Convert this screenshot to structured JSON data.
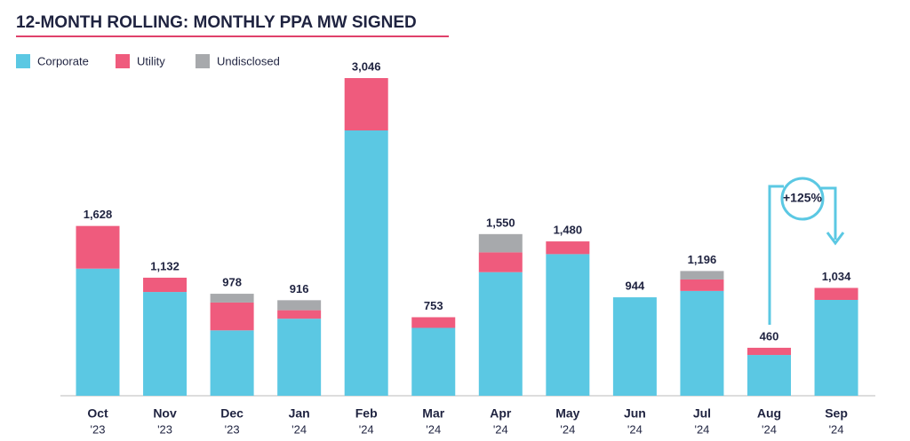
{
  "chart_data": {
    "type": "stacked_bar",
    "title": "12-MONTH ROLLING: MONTHLY PPA MW SIGNED",
    "categories": [
      "Oct",
      "Nov",
      "Dec",
      "Jan",
      "Feb",
      "Mar",
      "Apr",
      "May",
      "Jun",
      "Jul",
      "Aug",
      "Sep"
    ],
    "category_years": [
      "'23",
      "'23",
      "'23",
      "'24",
      "'24",
      "'24",
      "'24",
      "'24",
      "'24",
      "'24",
      "'24",
      "'24"
    ],
    "series": [
      {
        "name": "Corporate",
        "color": "#5bc8e3",
        "values": [
          1219,
          995,
          627,
          739,
          2544,
          651,
          1185,
          1358,
          944,
          1005,
          391,
          919
        ]
      },
      {
        "name": "Utility",
        "color": "#ef5b7d",
        "values": [
          409,
          137,
          267,
          81,
          502,
          102,
          190,
          122,
          0,
          110,
          69,
          115
        ]
      },
      {
        "name": "Undisclosed",
        "color": "#a7a9ac",
        "values": [
          0,
          0,
          84,
          96,
          0,
          0,
          175,
          0,
          0,
          81,
          0,
          0
        ]
      }
    ],
    "totals": [
      1628,
      1132,
      978,
      916,
      3046,
      753,
      1550,
      1480,
      944,
      1196,
      460,
      1034
    ],
    "total_labels": [
      "1,628",
      "1,132",
      "978",
      "916",
      "3,046",
      "753",
      "1,550",
      "1,480",
      "944",
      "1,196",
      "460",
      "1,034"
    ],
    "annotation": "+125%"
  }
}
